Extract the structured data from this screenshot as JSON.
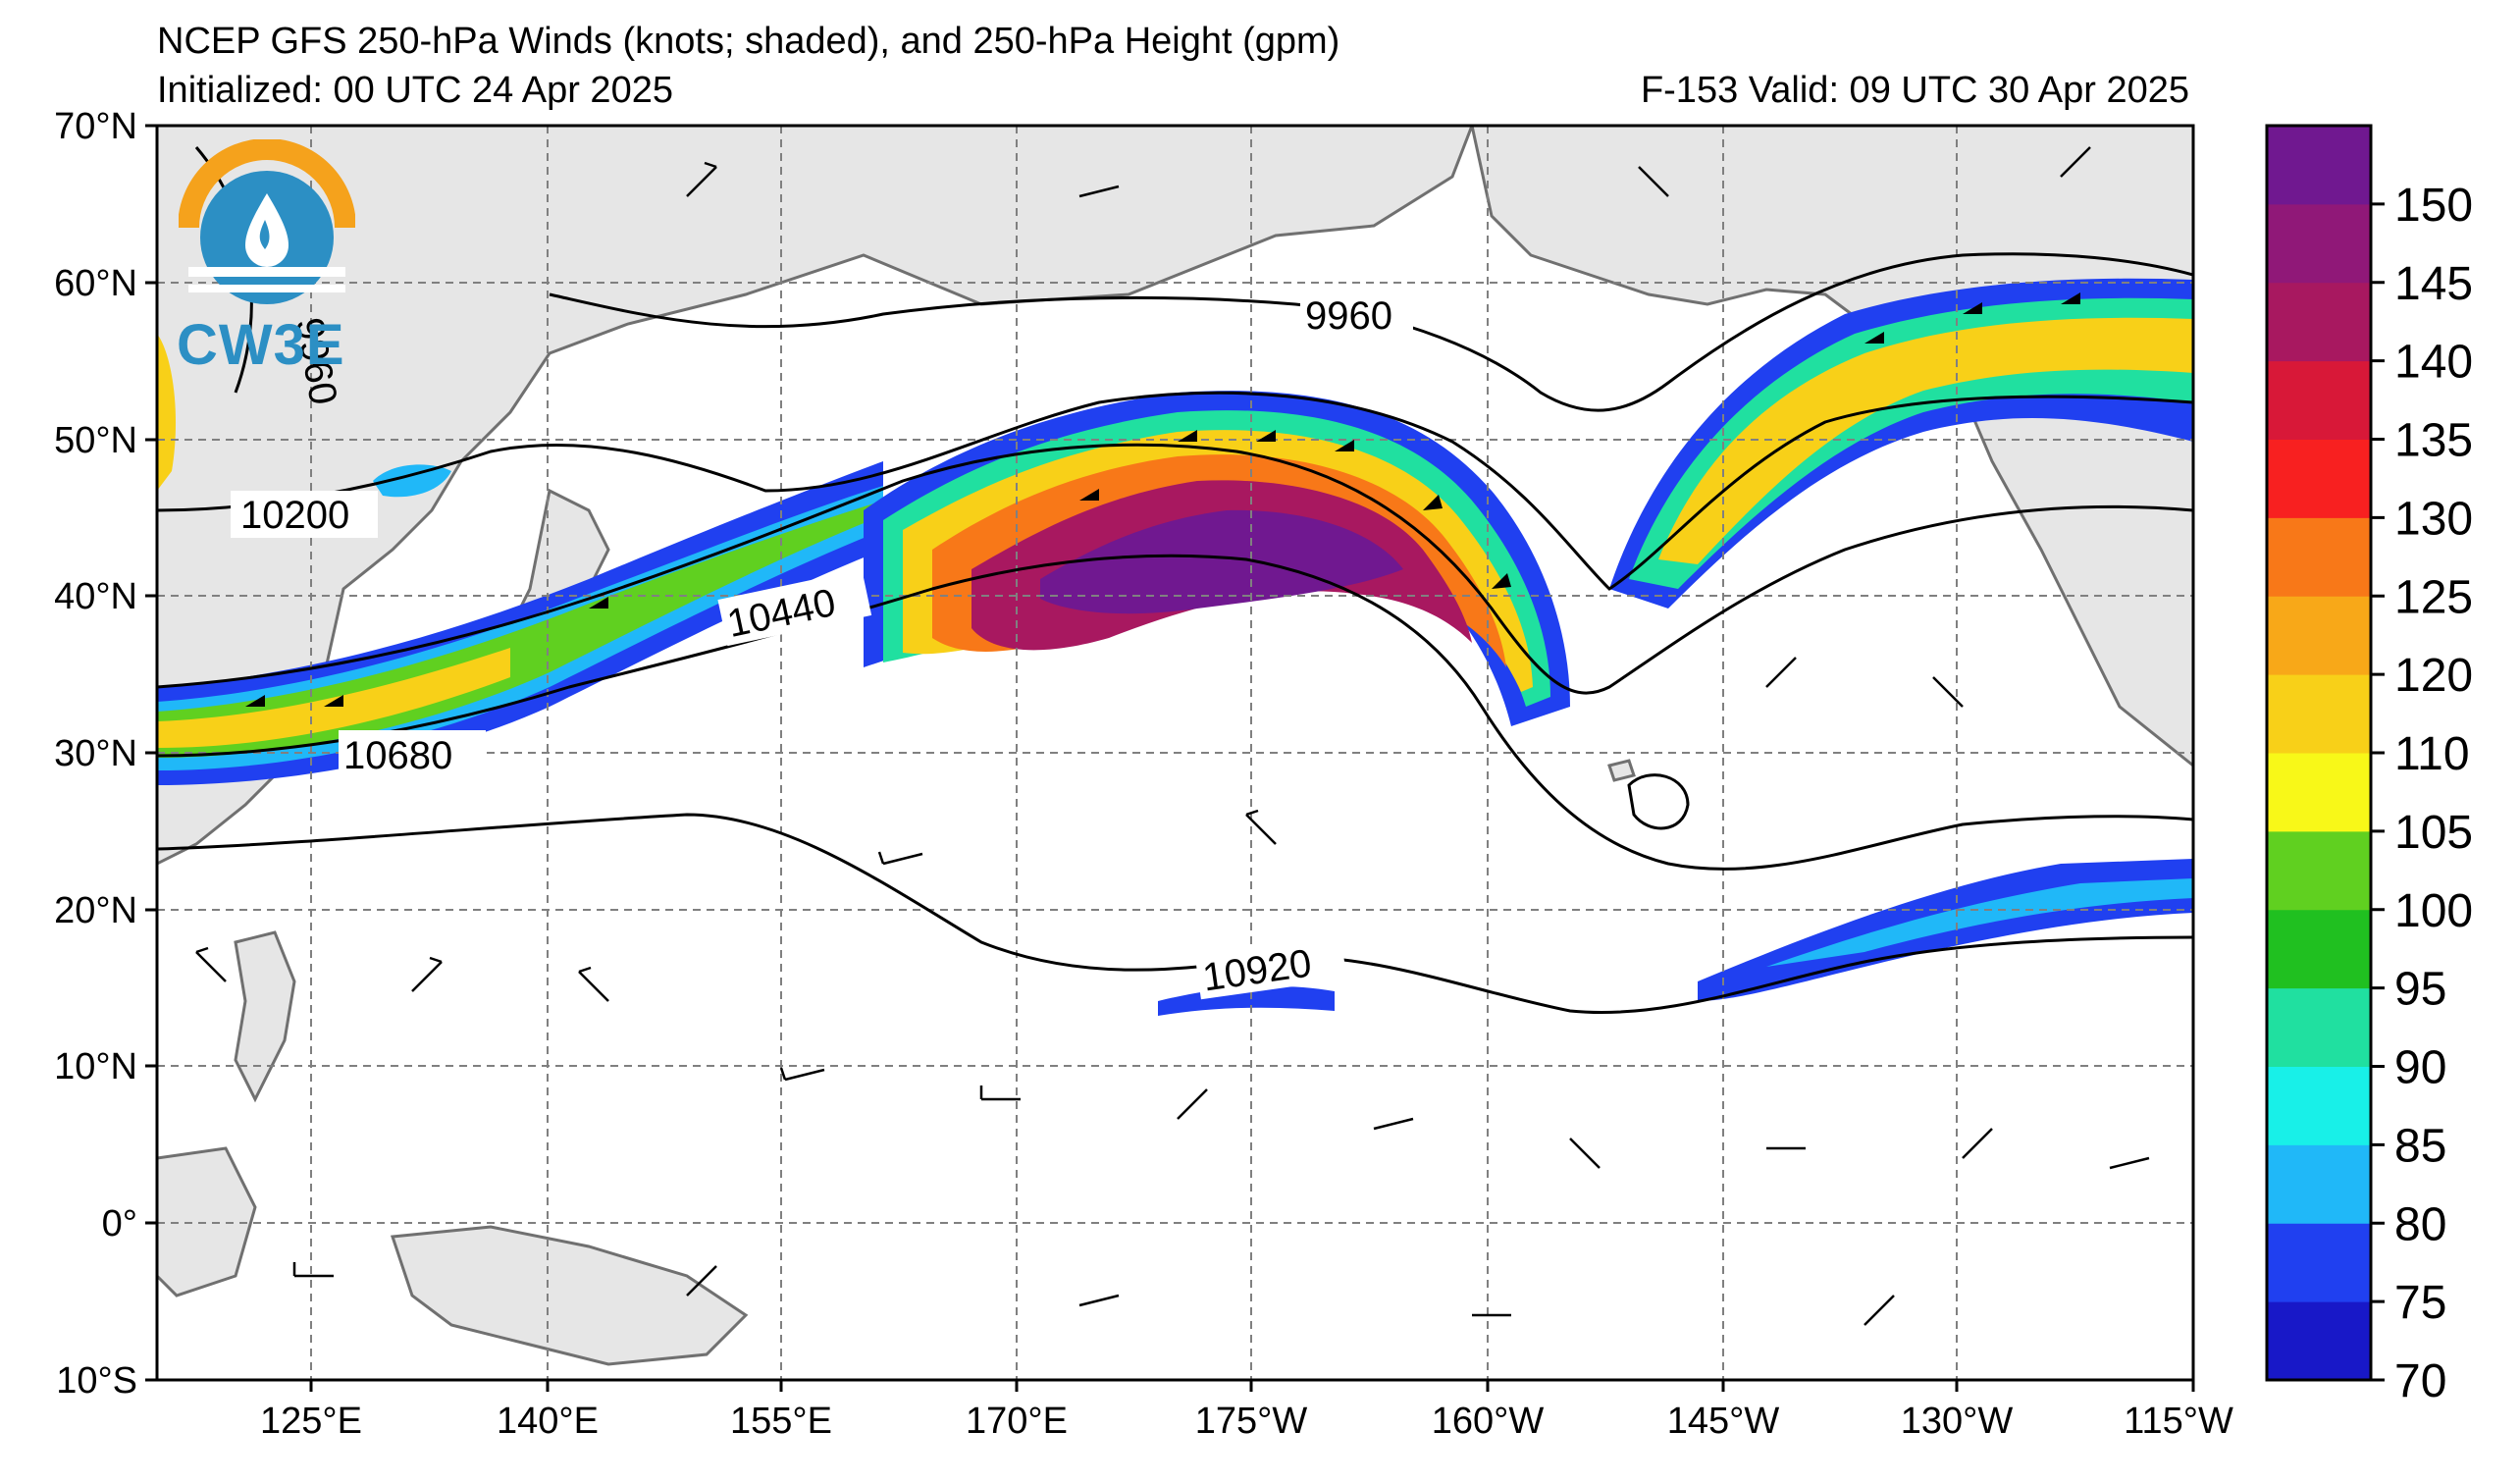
{
  "header": {
    "title": "NCEP GFS 250-hPa Winds (knots; shaded), and 250-hPa Height (gpm)",
    "initialized": "Initialized: 00 UTC 24 Apr 2025",
    "forecast": "F-153  Valid: 09 UTC 30 Apr 2025"
  },
  "logo": {
    "text": "CW3E",
    "icon": "water-drop-sun-icon"
  },
  "map": {
    "lat_labels": [
      "70°N",
      "60°N",
      "50°N",
      "40°N",
      "30°N",
      "20°N",
      "10°N",
      "0°",
      "10°S"
    ],
    "lon_labels": [
      "125°E",
      "140°E",
      "155°E",
      "170°E",
      "175°W",
      "160°W",
      "145°W",
      "130°W",
      "115°W"
    ],
    "contour_labels": [
      "9960",
      "9960",
      "10200",
      "10440",
      "10680",
      "10920"
    ],
    "contour_values": [
      9960,
      10200,
      10440,
      10680,
      10920
    ]
  },
  "colorbar": {
    "ticks": [
      "150",
      "145",
      "140",
      "135",
      "130",
      "125",
      "120",
      "110",
      "105",
      "100",
      "95",
      "90",
      "85",
      "80",
      "75",
      "70"
    ],
    "colors": [
      "#1818c8",
      "#2040f0",
      "#20b8f8",
      "#18f0e8",
      "#20e0a0",
      "#20c020",
      "#60d020",
      "#f8f818",
      "#f8d018",
      "#f8a818",
      "#f87818",
      "#f82020",
      "#d81838",
      "#a81860",
      "#901878",
      "#701890"
    ]
  }
}
